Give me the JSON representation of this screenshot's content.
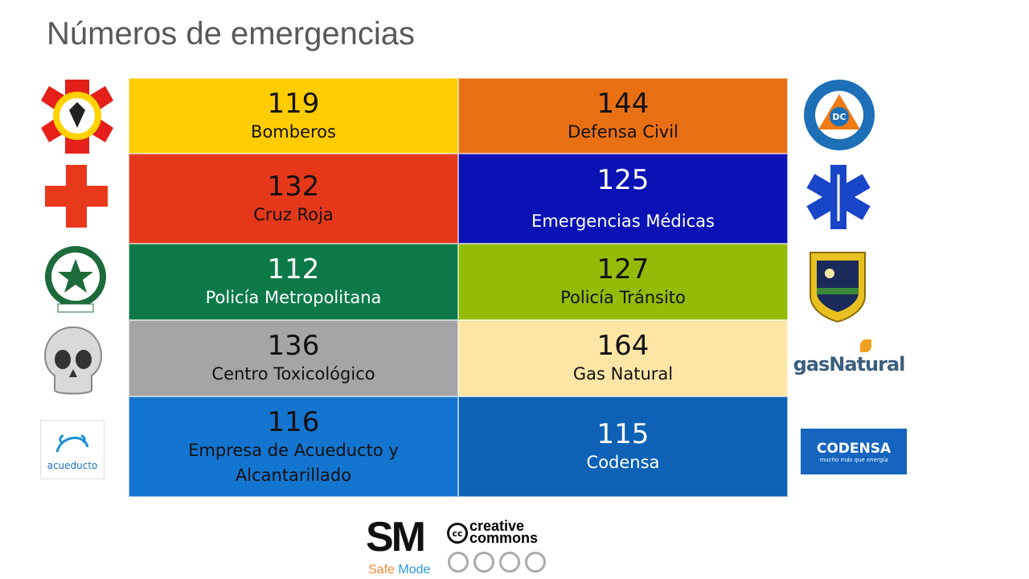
{
  "title": "Números de emergencias",
  "entries": [
    {
      "number": "119",
      "label": "Bomberos",
      "bg": "#FFCC00",
      "fg": "#111111"
    },
    {
      "number": "144",
      "label": "Defensa Civil",
      "bg": "#E97012",
      "fg": "#111111"
    },
    {
      "number": "132",
      "label": "Cruz Roja",
      "bg": "#E5381A",
      "fg": "#111111"
    },
    {
      "number": "125",
      "label": "Emergencias Médicas",
      "bg": "#0A12B5",
      "fg": "#ffffff"
    },
    {
      "number": "112",
      "label": "Policía Metropolitana",
      "bg": "#0B7A47",
      "fg": "#ffffff"
    },
    {
      "number": "127",
      "label": "Policía Tránsito",
      "bg": "#94BB07",
      "fg": "#111111"
    },
    {
      "number": "136",
      "label": "Centro Toxicológico",
      "bg": "#A5A5A8",
      "fg": "#111111"
    },
    {
      "number": "164",
      "label": "Gas Natural",
      "bg": "#FCE5A5",
      "fg": "#111111"
    },
    {
      "number": "116",
      "label": "Empresa de Acueducto y Alcantarillado",
      "bg": "#1475D0",
      "fg": "#111111"
    },
    {
      "number": "115",
      "label": "Codensa",
      "bg": "#0D62B5",
      "fg": "#ffffff"
    }
  ],
  "logos": {
    "dc": "DC",
    "acueducto": "acueducto",
    "gas": "gasNatural",
    "codensa": "CODENSA",
    "codensa_tag": "mucho más que energía"
  },
  "footer": {
    "sm": "SM",
    "safe": "Safe",
    "mode": "Mode",
    "cc": "cc",
    "creative": "creative",
    "commons": "commons"
  }
}
